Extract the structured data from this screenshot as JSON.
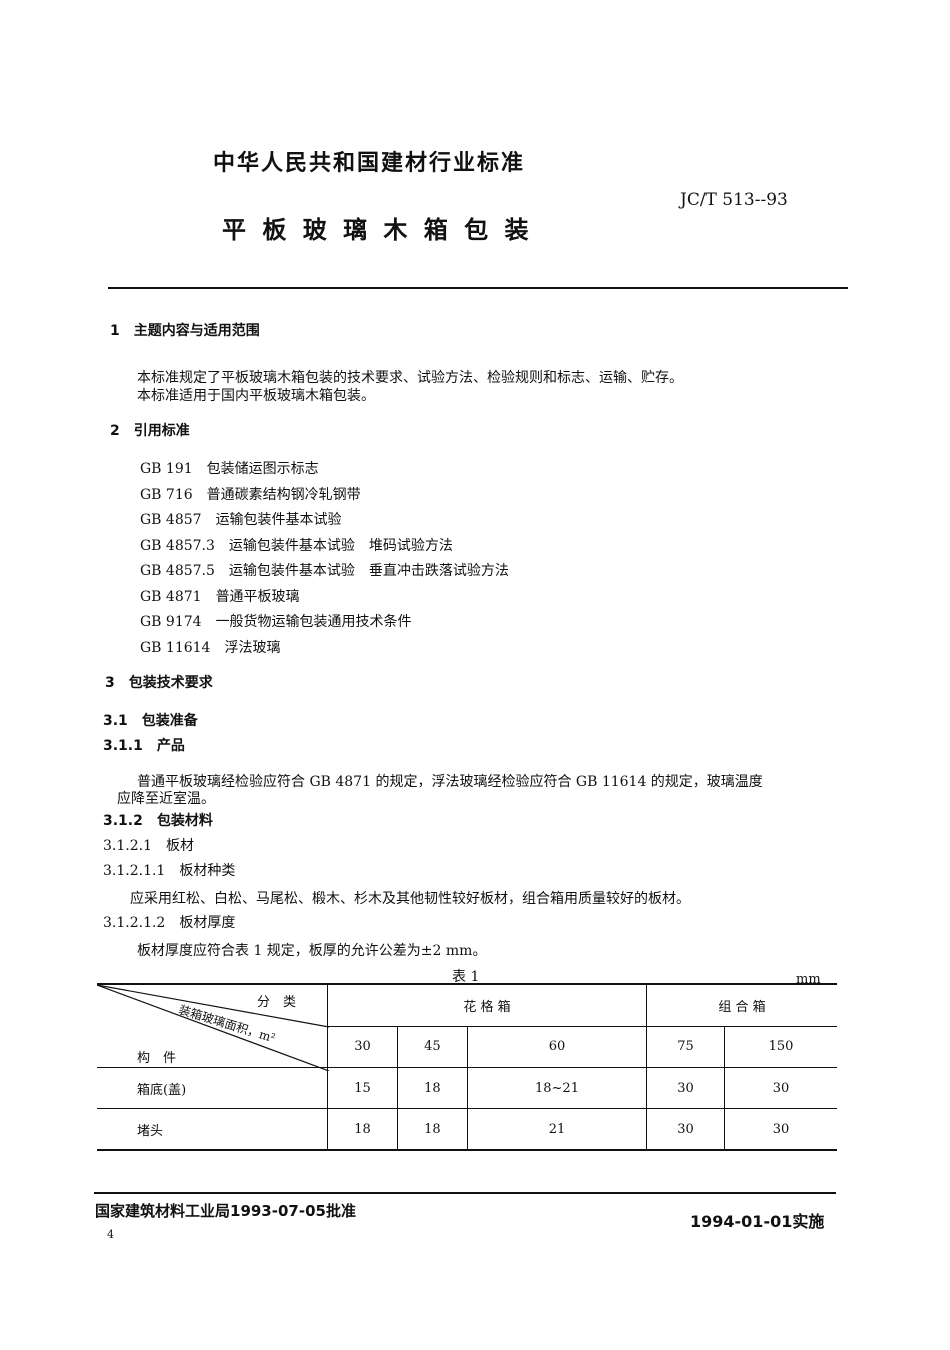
{
  "header": {
    "org_title": "中华人民共和国建材行业标准",
    "standard_no": "JC/T 513--93",
    "doc_title": "平 板 玻 璃 木 箱 包 装"
  },
  "sections": [
    {
      "num": "1",
      "title": "主题内容与适用范围",
      "paras": [
        "本标准规定了平板玻璃木箱包装的技术要求、试验方法、检验规则和标志、运输、贮存。",
        "本标准适用于国内平板玻璃木箱包装。"
      ]
    },
    {
      "num": "2",
      "title": "引用标准"
    }
  ],
  "references": [
    {
      "code": "GB 191",
      "name": "包装储运图示标志"
    },
    {
      "code": "GB 716",
      "name": "普通碳素结构钢冷轧钢带"
    },
    {
      "code": "GB 4857",
      "name": "运输包装件基本试验"
    },
    {
      "code": "GB 4857.3",
      "name": "运输包装件基本试验　堆码试验方法"
    },
    {
      "code": "GB 4857.5",
      "name": "运输包装件基本试验　垂直冲击跌落试验方法"
    },
    {
      "code": "GB 4871",
      "name": "普通平板玻璃"
    },
    {
      "code": "GB 9174",
      "name": "一般货物运输包装通用技术条件"
    },
    {
      "code": "GB 11614",
      "name": "浮法玻璃"
    }
  ],
  "s3": {
    "title": "3　包装技术要求",
    "s31": "3.1　包装准备",
    "s311": "3.1.1　产品",
    "p311a": "普通平板玻璃经检验应符合 GB 4871 的规定，浮法玻璃经检验应符合 GB 11614 的规定，玻璃温度",
    "p311b": "应降至近室温。",
    "s312": "3.1.2　包装材料",
    "s3121": "3.1.2.1　板材",
    "s31211": "3.1.2.1.1　板材种类",
    "p31211": "应采用红松、白松、马尾松、椴木、杉木及其他韧性较好板材，组合箱用质量较好的板材。",
    "s31212": "3.1.2.1.2　板材厚度",
    "p31212": "板材厚度应符合表 1 规定，板厚的允许公差为±2 mm。"
  },
  "table": {
    "caption": "表 1",
    "unit": "mm",
    "diag_top": "分　类",
    "diag_mid": "装箱玻璃面积，m²",
    "diag_bottom": "构　件",
    "group1": "花 格 箱",
    "group2": "组 合 箱",
    "areas": [
      "30",
      "45",
      "60",
      "75",
      "150"
    ],
    "rows": [
      {
        "label": "箱底(盖)",
        "values": [
          "15",
          "18",
          "18~21",
          "30",
          "30"
        ]
      },
      {
        "label": "堵头",
        "values": [
          "18",
          "18",
          "21",
          "30",
          "30"
        ]
      }
    ]
  },
  "footer": {
    "approval": "国家建筑材料工业局1993-07-05批准",
    "effective": "1994-01-01实施",
    "page": "4"
  }
}
